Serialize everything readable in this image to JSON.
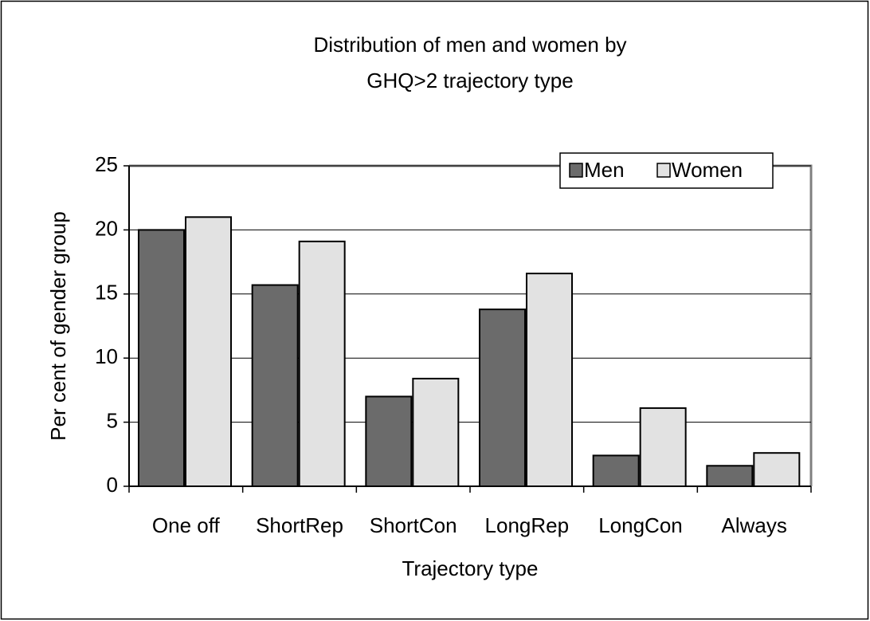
{
  "chart_data": {
    "type": "bar",
    "title": [
      "Distribution of men and women by",
      "GHQ>2 trajectory type"
    ],
    "x_label": "Trajectory type",
    "y_label": "Per cent of gender group",
    "categories": [
      "One off",
      "ShortRep",
      "ShortCon",
      "LongRep",
      "LongCon",
      "Always"
    ],
    "series": [
      {
        "name": "Men",
        "color": "#6b6b6b",
        "values": [
          20,
          15.7,
          7,
          13.8,
          2.4,
          1.6
        ]
      },
      {
        "name": "Women",
        "color": "#e2e2e2",
        "values": [
          21,
          19.1,
          8.4,
          16.6,
          6.1,
          2.6
        ]
      }
    ],
    "ylim": [
      0,
      25
    ],
    "yticks": [
      0,
      5,
      10,
      15,
      20,
      25
    ],
    "grid": true,
    "legend": "top-right"
  }
}
